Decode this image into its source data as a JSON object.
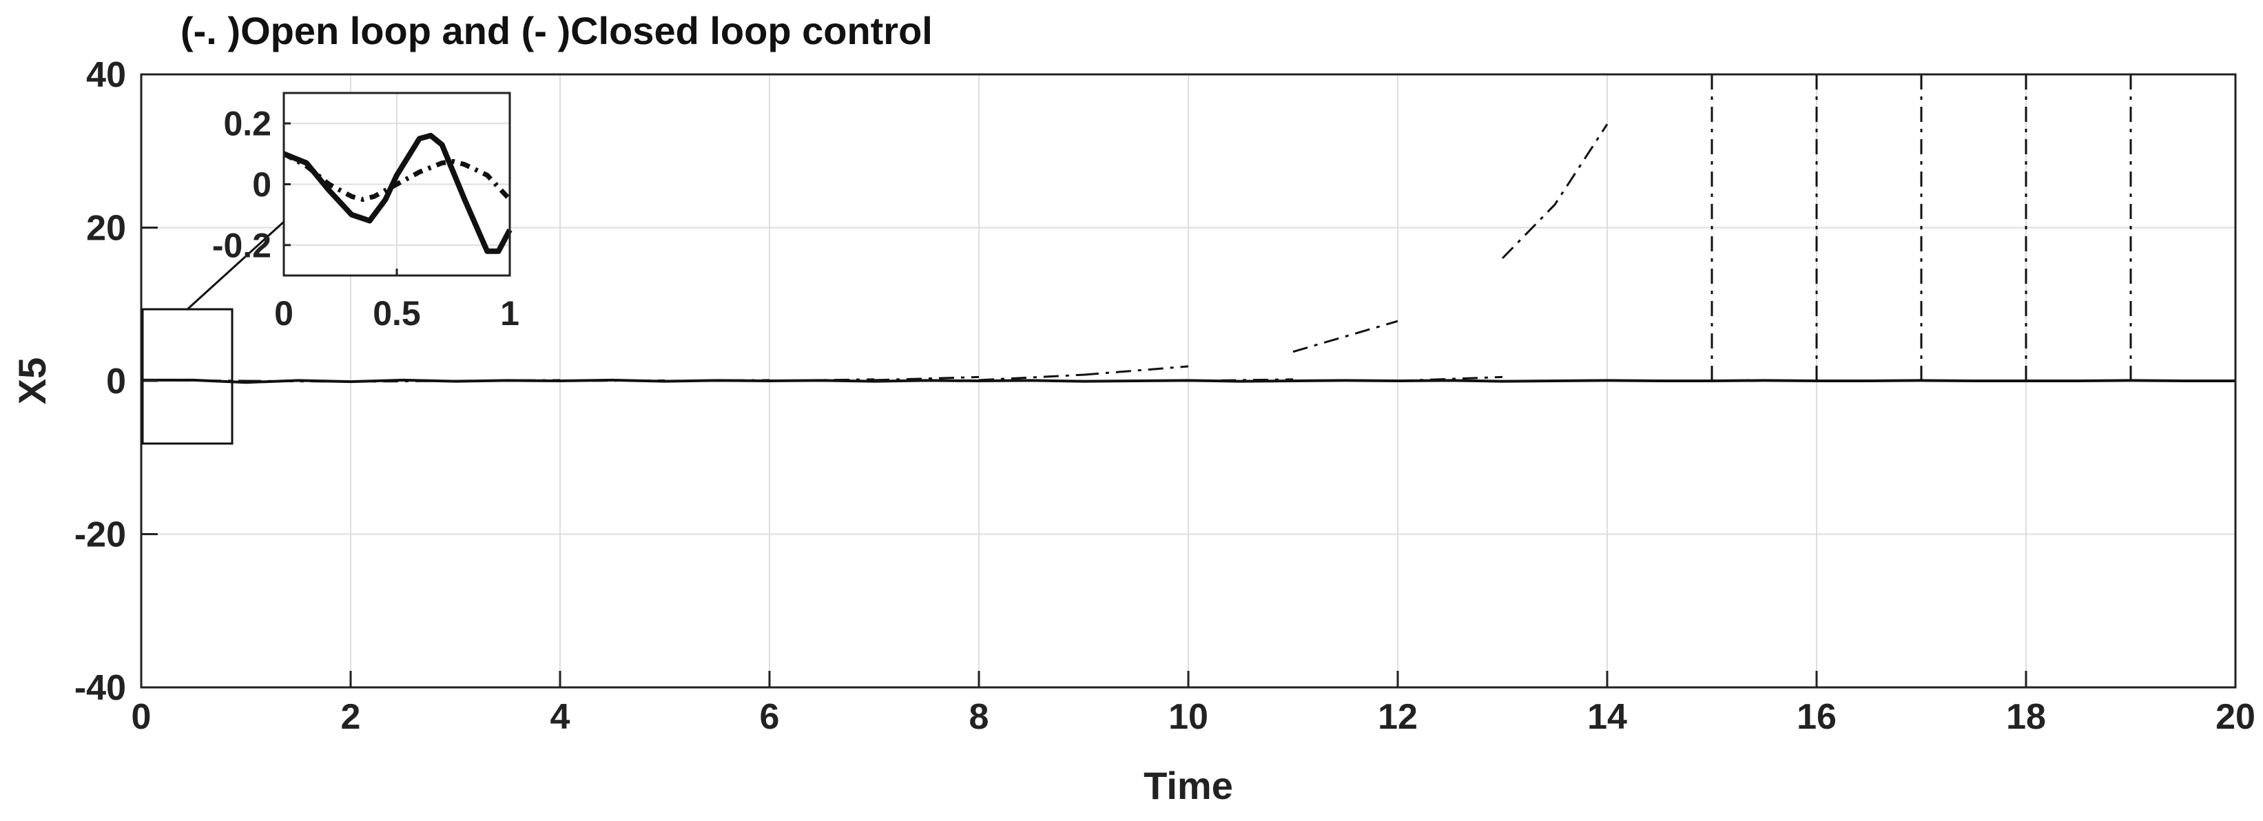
{
  "chart_data": [
    {
      "type": "line",
      "title": "(-. )Open loop and (- )Closed loop control",
      "xlabel": "Time",
      "ylabel": "X5",
      "xlim": [
        0,
        20
      ],
      "ylim": [
        -40,
        40
      ],
      "grid": true,
      "xticks": [
        "0",
        "2",
        "4",
        "6",
        "8",
        "10",
        "12",
        "14",
        "16",
        "18",
        "20"
      ],
      "yticks": [
        "40",
        "20",
        "0",
        "-20",
        "-40"
      ],
      "series": [
        {
          "style": "dash-dot",
          "segments": [
            [
              [
                0,
                0.1
              ],
              [
                1,
                0.0
              ]
            ],
            [
              [
                1,
                0.0
              ],
              [
                2,
                -0.1
              ]
            ],
            [
              [
                2,
                -0.1
              ],
              [
                3,
                0.0
              ]
            ],
            [
              [
                3,
                0.0
              ],
              [
                4,
                0.1
              ]
            ],
            [
              [
                4,
                0.0
              ],
              [
                5,
                0.05
              ]
            ],
            [
              [
                5,
                0.0
              ],
              [
                6,
                0.1
              ]
            ],
            [
              [
                6,
                0.0
              ],
              [
                7,
                0.2
              ]
            ],
            [
              [
                7,
                0.1
              ],
              [
                8,
                0.5
              ]
            ],
            [
              [
                8,
                0.1
              ],
              [
                9,
                0.8
              ]
            ],
            [
              [
                9,
                0.8
              ],
              [
                10,
                1.9
              ]
            ],
            [
              [
                10,
                0.0
              ],
              [
                11,
                0.2
              ]
            ],
            [
              [
                11,
                3.8
              ],
              [
                12,
                7.8
              ]
            ],
            [
              [
                12,
                0.0
              ],
              [
                13,
                0.5
              ]
            ],
            [
              [
                13,
                16.0
              ],
              [
                13.5,
                23.0
              ],
              [
                14,
                33.5
              ]
            ],
            [
              [
                15,
                0.0
              ],
              [
                15,
                40.0
              ]
            ],
            [
              [
                16,
                0.0
              ],
              [
                16,
                40.0
              ]
            ],
            [
              [
                17,
                0.0
              ],
              [
                17,
                40.0
              ]
            ],
            [
              [
                18,
                0.0
              ],
              [
                18,
                40.0
              ]
            ],
            [
              [
                19,
                0.0
              ],
              [
                19,
                40.0
              ]
            ],
            [
              [
                20,
                0.0
              ],
              [
                20,
                40.0
              ]
            ]
          ]
        },
        {
          "style": "solid",
          "x": [
            0,
            0.5,
            1,
            1.5,
            2,
            2.5,
            3,
            3.5,
            4,
            4.5,
            5,
            5.5,
            6,
            6.5,
            7,
            7.5,
            8,
            8.5,
            9,
            9.5,
            10,
            10.5,
            11,
            11.5,
            12,
            12.5,
            13,
            13.5,
            14,
            14.5,
            15,
            15.5,
            16,
            16.5,
            17,
            17.5,
            18,
            18.5,
            19,
            19.5,
            20
          ],
          "y": [
            0.1,
            0.1,
            -0.2,
            0.05,
            -0.1,
            0.1,
            -0.05,
            0.05,
            0.0,
            0.1,
            -0.05,
            0.05,
            0.0,
            0.05,
            -0.05,
            0.05,
            0.0,
            0.05,
            -0.05,
            0.0,
            0.05,
            -0.05,
            0.0,
            0.05,
            0.0,
            0.05,
            -0.05,
            0.0,
            0.05,
            0.0,
            0.0,
            0.05,
            0.0,
            0.0,
            0.05,
            0.0,
            0.0,
            0.0,
            0.05,
            0.0,
            0.0
          ]
        }
      ]
    },
    {
      "type": "line",
      "xlim": [
        0,
        1
      ],
      "ylim": [
        -0.3,
        0.3
      ],
      "grid": true,
      "xticks": [
        "0",
        "0.5",
        "1"
      ],
      "yticks": [
        "0.2",
        "0",
        "-0.2"
      ],
      "series": [
        {
          "style": "dash-dot",
          "x": [
            0,
            0.1,
            0.2,
            0.3,
            0.35,
            0.4,
            0.5,
            0.6,
            0.7,
            0.75,
            0.8,
            0.9,
            1.0
          ],
          "y": [
            0.1,
            0.06,
            0.0,
            -0.04,
            -0.05,
            -0.04,
            0.0,
            0.04,
            0.07,
            0.075,
            0.065,
            0.03,
            -0.05
          ]
        },
        {
          "style": "solid",
          "x": [
            0,
            0.1,
            0.2,
            0.3,
            0.38,
            0.45,
            0.5,
            0.6,
            0.65,
            0.7,
            0.8,
            0.9,
            0.95,
            1.0
          ],
          "y": [
            0.1,
            0.07,
            -0.02,
            -0.1,
            -0.12,
            -0.05,
            0.03,
            0.15,
            0.16,
            0.13,
            -0.05,
            -0.22,
            -0.22,
            -0.15
          ]
        }
      ]
    }
  ]
}
